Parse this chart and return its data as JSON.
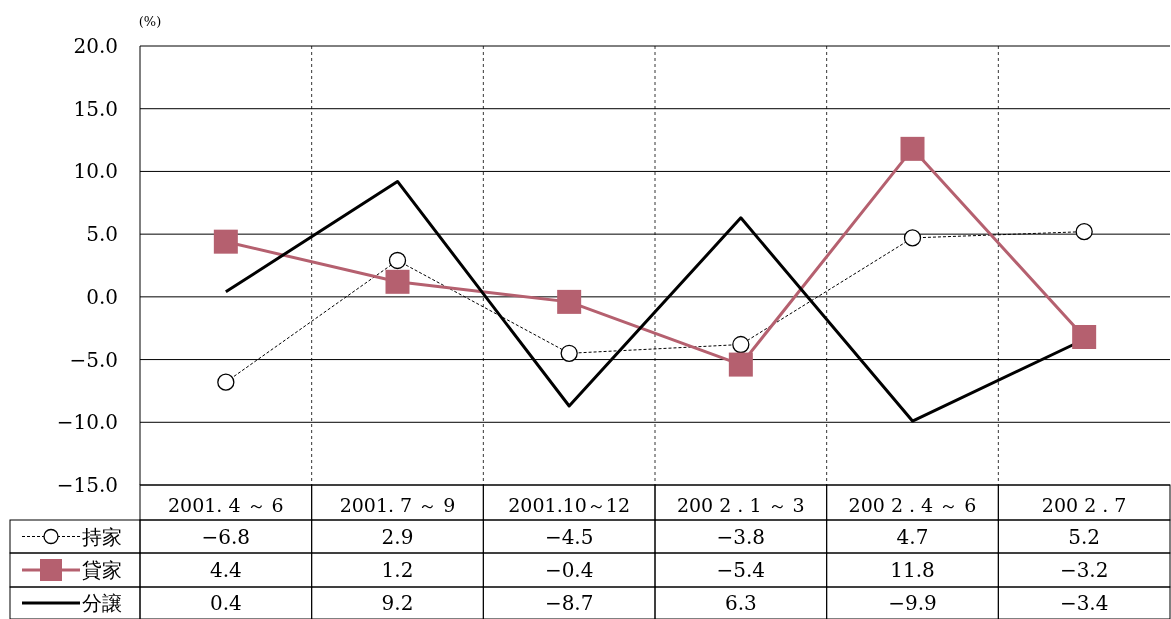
{
  "chart_data": {
    "type": "line",
    "ylabel": "(%)",
    "categories": [
      "2001. 4 ～ 6",
      "2001. 7 ～ 9",
      "2001.10～12",
      "200 2 . 1 ～ 3",
      "200 2 . 4 ～ 6",
      "200 2 . 7"
    ],
    "series": [
      {
        "name": "持家",
        "color": "#000000",
        "values": [
          -6.8,
          2.9,
          -4.5,
          -3.8,
          4.7,
          5.2
        ],
        "marker": "circle",
        "line_style": "dotted"
      },
      {
        "name": "貸家",
        "color": "#b5606f",
        "values": [
          4.4,
          1.2,
          -0.4,
          -5.4,
          11.8,
          -3.2
        ],
        "marker": "square",
        "line_style": "solid"
      },
      {
        "name": "分譲",
        "color": "#000000",
        "values": [
          0.4,
          9.2,
          -8.7,
          6.3,
          -9.9,
          -3.4
        ],
        "marker": "none",
        "line_style": "solid"
      }
    ],
    "ylim": [
      -15,
      20
    ],
    "yticks": [
      {
        "value": 20,
        "label": "20.0"
      },
      {
        "value": 15,
        "label": "15.0"
      },
      {
        "value": 10,
        "label": "10.0"
      },
      {
        "value": 5,
        "label": "5.0"
      },
      {
        "value": 0,
        "label": "0.0"
      },
      {
        "value": -5,
        "label": "−5.0"
      },
      {
        "value": -10,
        "label": "−10.0"
      },
      {
        "value": -15,
        "label": "−15.0"
      }
    ],
    "grid": true,
    "legend": "bottom",
    "data_labels": true
  }
}
